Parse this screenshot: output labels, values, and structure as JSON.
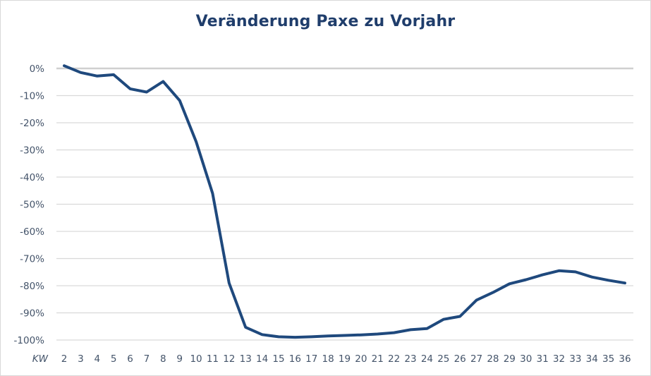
{
  "chart_data": {
    "type": "line",
    "title": "Veränderung Paxe zu Vorjahr",
    "xlabel": "KW",
    "ylabel": "",
    "categories": [
      "2",
      "3",
      "4",
      "5",
      "6",
      "7",
      "8",
      "9",
      "10",
      "11",
      "12",
      "13",
      "14",
      "15",
      "16",
      "17",
      "18",
      "19",
      "20",
      "21",
      "22",
      "23",
      "24",
      "25",
      "26",
      "27",
      "28",
      "29",
      "30",
      "31",
      "32",
      "33",
      "34",
      "35",
      "36"
    ],
    "series": [
      {
        "name": "Veränderung Paxe zu Vorjahr",
        "color": "#1f497d",
        "values": [
          1,
          -1.5,
          -2.8,
          -2.3,
          -7.5,
          -8.7,
          -4.8,
          -11.8,
          -27,
          -46,
          -79,
          -95.3,
          -98,
          -98.8,
          -99,
          -98.8,
          -98.5,
          -98.3,
          -98.1,
          -97.8,
          -97.3,
          -96.2,
          -95.8,
          -92.4,
          -91.3,
          -85.3,
          -82.5,
          -79.3,
          -77.8,
          -76,
          -74.5,
          -74.9,
          -76.8,
          -78,
          -79
        ]
      }
    ],
    "ylim": [
      -100,
      0
    ],
    "yticks": [
      0,
      -10,
      -20,
      -30,
      -40,
      -50,
      -60,
      -70,
      -80,
      -90,
      -100
    ],
    "ytick_labels": [
      "0%",
      "-10%",
      "-20%",
      "-30%",
      "-40%",
      "-50%",
      "-60%",
      "-70%",
      "-80%",
      "-90%",
      "-100%"
    ],
    "grid": true,
    "legend": "none"
  },
  "colors": {
    "line": "#1f497d",
    "title": "#1f3d6b",
    "gridline": "#d9d9d9",
    "zero_line": "#d0d0d0",
    "tick_text": "#44546a"
  }
}
